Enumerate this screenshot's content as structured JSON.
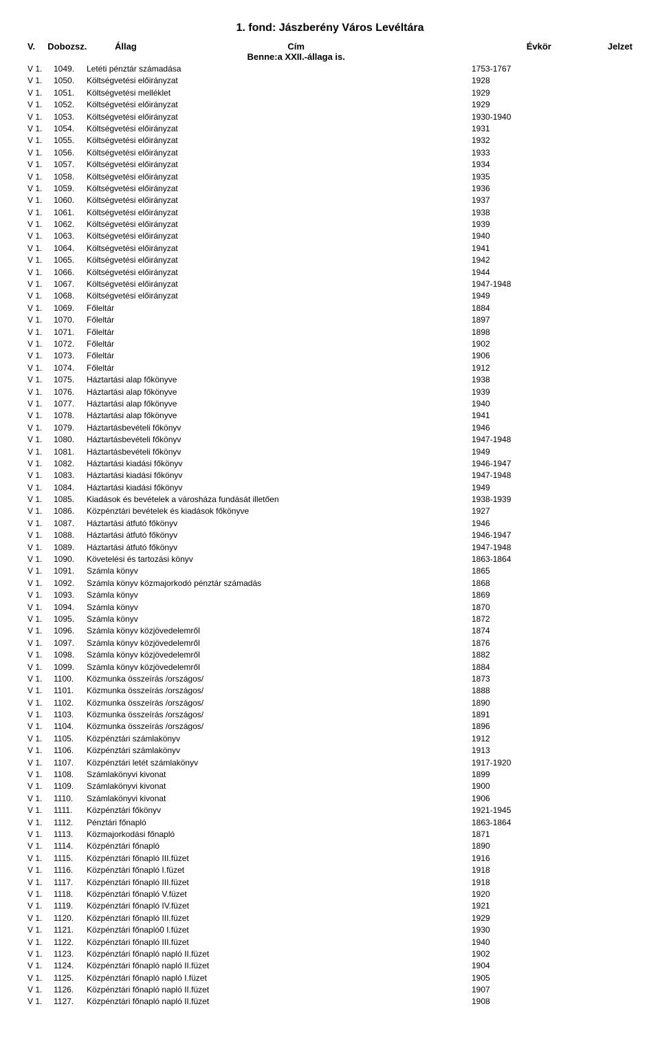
{
  "title": "1. fond: Jászberény Város Levéltára",
  "header": {
    "v": "V.",
    "dobozsz": "Dobozsz.",
    "allag": "Állag",
    "cim": "Cím",
    "evkor": "Évkör",
    "jelzet": "Jelzet"
  },
  "subline": "Benne:a XXII.-állaga is.",
  "rows": [
    {
      "pre": "V 1.",
      "num": "1049.",
      "title": "Letéti pénztár számadása",
      "year": "1753-1767"
    },
    {
      "pre": "V 1.",
      "num": "1050.",
      "title": "Költségvetési előirányzat",
      "year": "1928"
    },
    {
      "pre": "V 1.",
      "num": "1051.",
      "title": "Költségvetési melléklet",
      "year": "1929"
    },
    {
      "pre": "V 1.",
      "num": "1052.",
      "title": "Költségvetési előirányzat",
      "year": "1929"
    },
    {
      "pre": "V 1.",
      "num": "1053.",
      "title": "Költségvetési előirányzat",
      "year": "1930-1940"
    },
    {
      "pre": "V 1.",
      "num": "1054.",
      "title": "Költségvetési előirányzat",
      "year": "1931"
    },
    {
      "pre": "V 1.",
      "num": "1055.",
      "title": "Költségvetési előirányzat",
      "year": "1932"
    },
    {
      "pre": "V 1.",
      "num": "1056.",
      "title": "Költségvetési előirányzat",
      "year": "1933"
    },
    {
      "pre": "V 1.",
      "num": "1057.",
      "title": "Költségvetési előirányzat",
      "year": "1934"
    },
    {
      "pre": "V 1.",
      "num": "1058.",
      "title": "Költségvetési előirányzat",
      "year": "1935"
    },
    {
      "pre": "V 1.",
      "num": "1059.",
      "title": "Költségvetési előirányzat",
      "year": "1936"
    },
    {
      "pre": "V 1.",
      "num": "1060.",
      "title": "Költségvetési előirányzat",
      "year": "1937"
    },
    {
      "pre": "V 1.",
      "num": "1061.",
      "title": "Költségvetési előirányzat",
      "year": "1938"
    },
    {
      "pre": "V 1.",
      "num": "1062.",
      "title": "Költségvetési előirányzat",
      "year": "1939"
    },
    {
      "pre": "V 1.",
      "num": "1063.",
      "title": "Költségvetési előirányzat",
      "year": "1940"
    },
    {
      "pre": "V 1.",
      "num": "1064.",
      "title": "Költségvetési előirányzat",
      "year": "1941"
    },
    {
      "pre": "V 1.",
      "num": "1065.",
      "title": "Költségvetési előirányzat",
      "year": "1942"
    },
    {
      "pre": "V 1.",
      "num": "1066.",
      "title": "Költségvetési előirányzat",
      "year": "1944"
    },
    {
      "pre": "V 1.",
      "num": "1067.",
      "title": "Költségvetési előirányzat",
      "year": "1947-1948"
    },
    {
      "pre": "V 1.",
      "num": "1068.",
      "title": "Költségvetési előirányzat",
      "year": "1949"
    },
    {
      "pre": "V 1.",
      "num": "1069.",
      "title": "Főleltár",
      "year": "1884"
    },
    {
      "pre": "V 1.",
      "num": "1070.",
      "title": "Főleltár",
      "year": "1897"
    },
    {
      "pre": "V 1.",
      "num": "1071.",
      "title": "Főleltár",
      "year": "1898"
    },
    {
      "pre": "V 1.",
      "num": "1072.",
      "title": "Főleltár",
      "year": "1902"
    },
    {
      "pre": "V 1.",
      "num": "1073.",
      "title": "Főleltár",
      "year": "1906"
    },
    {
      "pre": "V 1.",
      "num": "1074.",
      "title": "Főleltár",
      "year": "1912"
    },
    {
      "pre": "V 1.",
      "num": "1075.",
      "title": "Háztartási alap főkönyve",
      "year": "1938"
    },
    {
      "pre": "V 1.",
      "num": "1076.",
      "title": "Háztartási alap főkönyve",
      "year": "1939"
    },
    {
      "pre": "V 1.",
      "num": "1077.",
      "title": "Háztartási alap főkönyve",
      "year": "1940"
    },
    {
      "pre": "V 1.",
      "num": "1078.",
      "title": "Háztartási alap főkönyve",
      "year": "1941"
    },
    {
      "pre": "V 1.",
      "num": "1079.",
      "title": "Háztartásbevételi főkönyv",
      "year": "1946"
    },
    {
      "pre": "V 1.",
      "num": "1080.",
      "title": "Háztartásbevételi főkönyv",
      "year": "1947-1948"
    },
    {
      "pre": "V 1.",
      "num": "1081.",
      "title": "Háztartásbevételi főkönyv",
      "year": "1949"
    },
    {
      "pre": "V 1.",
      "num": "1082.",
      "title": "Háztartási kiadási főkönyv",
      "year": "1946-1947"
    },
    {
      "pre": "V 1.",
      "num": "1083.",
      "title": "Háztartási kiadási főkönyv",
      "year": "1947-1948"
    },
    {
      "pre": "V 1.",
      "num": "1084.",
      "title": "Háztartási kiadási főkönyv",
      "year": "1949"
    },
    {
      "pre": "V 1.",
      "num": "1085.",
      "title": "Kiadások és bevételek a városháza fundását illetően",
      "year": "1938-1939"
    },
    {
      "pre": "V 1.",
      "num": "1086.",
      "title": "Közpénztári bevételek és kiadások főkönyve",
      "year": "1927"
    },
    {
      "pre": "V 1.",
      "num": "1087.",
      "title": "Háztartási átfutó főkönyv",
      "year": "1946"
    },
    {
      "pre": "V 1.",
      "num": "1088.",
      "title": "Háztartási átfutó főkönyv",
      "year": "1946-1947"
    },
    {
      "pre": "V 1.",
      "num": "1089.",
      "title": "Háztartási átfutó főkönyv",
      "year": "1947-1948"
    },
    {
      "pre": "V 1.",
      "num": "1090.",
      "title": "Követelési és tartozási könyv",
      "year": "1863-1864"
    },
    {
      "pre": "V 1.",
      "num": "1091.",
      "title": "Számla könyv",
      "year": "1865"
    },
    {
      "pre": "V 1.",
      "num": "1092.",
      "title": "Számla könyv közmajorkodó pénztár számadás",
      "year": "1868"
    },
    {
      "pre": "V 1.",
      "num": "1093.",
      "title": "Számla könyv",
      "year": "1869"
    },
    {
      "pre": "V 1.",
      "num": "1094.",
      "title": "Számla könyv",
      "year": "1870"
    },
    {
      "pre": "V 1.",
      "num": "1095.",
      "title": "Számla könyv",
      "year": "1872"
    },
    {
      "pre": "V 1.",
      "num": "1096.",
      "title": "Számla könyv közjövedelemről",
      "year": "1874"
    },
    {
      "pre": "V 1.",
      "num": "1097.",
      "title": "Számla könyv közjövedelemről",
      "year": "1876"
    },
    {
      "pre": "V 1.",
      "num": "1098.",
      "title": "Számla könyv közjövedelemről",
      "year": "1882"
    },
    {
      "pre": "V 1.",
      "num": "1099.",
      "title": "Számla könyv közjövedelemről",
      "year": "1884"
    },
    {
      "pre": "V 1.",
      "num": "1100.",
      "title": "Közmunka összeírás /országos/",
      "year": "1873"
    },
    {
      "pre": "V 1.",
      "num": "1101.",
      "title": "Közmunka összeírás /országos/",
      "year": "1888"
    },
    {
      "pre": "V 1.",
      "num": "1102.",
      "title": "Közmunka összeírás /országos/",
      "year": "1890"
    },
    {
      "pre": "V 1.",
      "num": "1103.",
      "title": "Közmunka összeírás /országos/",
      "year": "1891"
    },
    {
      "pre": "V 1.",
      "num": "1104.",
      "title": "Közmunka összeírás /országos/",
      "year": "1896"
    },
    {
      "pre": "V 1.",
      "num": "1105.",
      "title": "Közpénztári számlakönyv",
      "year": "1912"
    },
    {
      "pre": "V 1.",
      "num": "1106.",
      "title": "Közpénztári számlakönyv",
      "year": "1913"
    },
    {
      "pre": "V 1.",
      "num": "1107.",
      "title": "Közpénztári letét számlakönyv",
      "year": "1917-1920"
    },
    {
      "pre": "V 1.",
      "num": "1108.",
      "title": "Számlakönyvi kivonat",
      "year": "1899"
    },
    {
      "pre": "V 1.",
      "num": "1109.",
      "title": "Számlakönyvi kivonat",
      "year": "1900"
    },
    {
      "pre": "V 1.",
      "num": "1110.",
      "title": "Számlakönyvi kivonat",
      "year": "1906"
    },
    {
      "pre": "V 1.",
      "num": "1111.",
      "title": "Közpénztári főkönyv",
      "year": "1921-1945"
    },
    {
      "pre": "V 1.",
      "num": "1112.",
      "title": "Pénztári főnapló",
      "year": "1863-1864"
    },
    {
      "pre": "V 1.",
      "num": "1113.",
      "title": "Közmajorkodási főnapló",
      "year": "1871"
    },
    {
      "pre": "V 1.",
      "num": "1114.",
      "title": "Közpénztári főnapló",
      "year": "1890"
    },
    {
      "pre": "V 1.",
      "num": "1115.",
      "title": "Közpénztári főnapló III.füzet",
      "year": "1916"
    },
    {
      "pre": "V 1.",
      "num": "1116.",
      "title": "Közpénztári főnapló I.füzet",
      "year": "1918"
    },
    {
      "pre": "V 1.",
      "num": "1117.",
      "title": "Közpénztári főnapló  III.füzet",
      "year": "1918"
    },
    {
      "pre": "V 1.",
      "num": "1118.",
      "title": "Közpénztári főnapló V.füzet",
      "year": "1920"
    },
    {
      "pre": "V 1.",
      "num": "1119.",
      "title": "Közpénztári főnapló  IV.füzet",
      "year": "1921"
    },
    {
      "pre": "V 1.",
      "num": "1120.",
      "title": "Közpénztári főnapló  III.füzet",
      "year": "1929"
    },
    {
      "pre": "V 1.",
      "num": "1121.",
      "title": "Közpénztári főnapló0 I.füzet",
      "year": "1930"
    },
    {
      "pre": "V 1.",
      "num": "1122.",
      "title": "Közpénztári főnapló III.füzet",
      "year": "1940"
    },
    {
      "pre": "V 1.",
      "num": "1123.",
      "title": "Közpénztári főnapló  napló II.füzet",
      "year": "1902"
    },
    {
      "pre": "V 1.",
      "num": "1124.",
      "title": "Közpénztári főnapló  napló II.füzet",
      "year": "1904"
    },
    {
      "pre": "V 1.",
      "num": "1125.",
      "title": "Közpénztári főnapló  napló I.füzet",
      "year": "1905"
    },
    {
      "pre": "V 1.",
      "num": "1126.",
      "title": "Közpénztári főnapló napló II.füzet",
      "year": "1907"
    },
    {
      "pre": "V 1.",
      "num": "1127.",
      "title": "Közpénztári főnapló napló II.füzet",
      "year": "1908"
    }
  ]
}
